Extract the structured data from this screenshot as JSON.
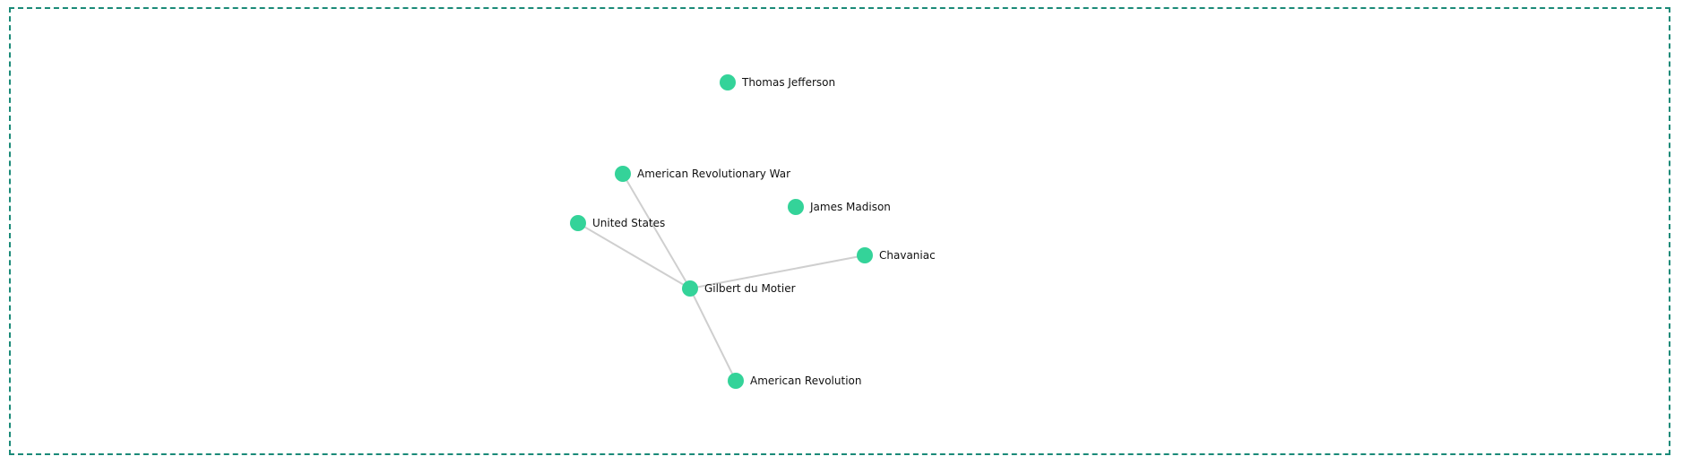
{
  "colors": {
    "node": "#34d399",
    "edge": "#cfcfcf",
    "frame": "#1a8a78"
  },
  "nodes": [
    {
      "id": "thomas-jefferson",
      "label": "Thomas Jefferson"
    },
    {
      "id": "american-revolutionary-war",
      "label": "American Revolutionary War"
    },
    {
      "id": "james-madison",
      "label": "James Madison"
    },
    {
      "id": "united-states",
      "label": "United States"
    },
    {
      "id": "chavaniac",
      "label": "Chavaniac"
    },
    {
      "id": "gilbert-du-motier",
      "label": "Gilbert du Motier"
    },
    {
      "id": "american-revolution",
      "label": "American Revolution"
    }
  ],
  "edges": [
    {
      "from": "gilbert-du-motier",
      "to": "american-revolutionary-war"
    },
    {
      "from": "gilbert-du-motier",
      "to": "united-states"
    },
    {
      "from": "gilbert-du-motier",
      "to": "chavaniac"
    },
    {
      "from": "gilbert-du-motier",
      "to": "american-revolution"
    }
  ]
}
